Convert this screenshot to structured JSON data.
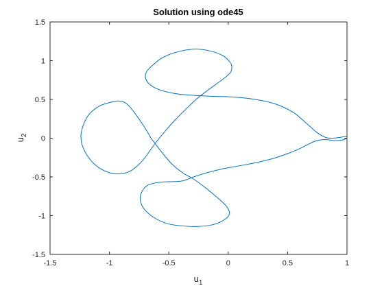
{
  "chart_data": {
    "type": "line",
    "title": "Solution using ode45",
    "xlabel": {
      "base": "u",
      "sub": "1"
    },
    "ylabel": {
      "base": "u",
      "sub": "2"
    },
    "xlim": [
      -1.5,
      1.0
    ],
    "ylim": [
      -1.5,
      1.5
    ],
    "xticks": [
      -1.5,
      -1,
      -0.5,
      0,
      0.5,
      1
    ],
    "xtick_labels": [
      "-1.5",
      "-1",
      "-0.5",
      "0",
      "0.5",
      "1"
    ],
    "yticks": [
      -1.5,
      -1,
      -0.5,
      0,
      0.5,
      1,
      1.5
    ],
    "ytick_labels": [
      "-1.5",
      "-1",
      "-0.5",
      "0",
      "0.5",
      "1",
      "1.5"
    ],
    "grid": false,
    "box": true,
    "line_color": "#0072bd",
    "series": [
      {
        "points": [
          [
            1.0,
            0.0
          ],
          [
            0.97,
            -0.02
          ],
          [
            0.93,
            -0.03
          ],
          [
            0.88,
            -0.03
          ],
          [
            0.84,
            -0.02
          ],
          [
            0.79,
            -0.02
          ],
          [
            0.73,
            -0.04
          ],
          [
            0.66,
            -0.09
          ],
          [
            0.58,
            -0.15
          ],
          [
            0.48,
            -0.21
          ],
          [
            0.36,
            -0.27
          ],
          [
            0.22,
            -0.32
          ],
          [
            0.08,
            -0.36
          ],
          [
            -0.06,
            -0.4
          ],
          [
            -0.19,
            -0.45
          ],
          [
            -0.29,
            -0.5
          ],
          [
            -0.38,
            -0.55
          ],
          [
            -0.45,
            -0.56
          ],
          [
            -0.58,
            -0.57
          ],
          [
            -0.68,
            -0.61
          ],
          [
            -0.73,
            -0.7
          ],
          [
            -0.74,
            -0.8
          ],
          [
            -0.71,
            -0.91
          ],
          [
            -0.63,
            -1.02
          ],
          [
            -0.52,
            -1.1
          ],
          [
            -0.4,
            -1.13
          ],
          [
            -0.27,
            -1.14
          ],
          [
            -0.14,
            -1.12
          ],
          [
            -0.04,
            -1.06
          ],
          [
            0.01,
            -0.98
          ],
          [
            -0.01,
            -0.89
          ],
          [
            -0.06,
            -0.81
          ],
          [
            -0.12,
            -0.73
          ],
          [
            -0.2,
            -0.63
          ],
          [
            -0.29,
            -0.53
          ],
          [
            -0.38,
            -0.45
          ],
          [
            -0.47,
            -0.34
          ],
          [
            -0.55,
            -0.2
          ],
          [
            -0.61,
            -0.08
          ],
          [
            -0.65,
            0.0
          ],
          [
            -0.68,
            0.08
          ],
          [
            -0.73,
            0.2
          ],
          [
            -0.8,
            0.35
          ],
          [
            -0.86,
            0.45
          ],
          [
            -0.92,
            0.48
          ],
          [
            -1.0,
            0.46
          ],
          [
            -1.09,
            0.41
          ],
          [
            -1.17,
            0.31
          ],
          [
            -1.22,
            0.17
          ],
          [
            -1.24,
            0.02
          ],
          [
            -1.22,
            -0.13
          ],
          [
            -1.16,
            -0.28
          ],
          [
            -1.08,
            -0.39
          ],
          [
            -0.99,
            -0.45
          ],
          [
            -0.91,
            -0.46
          ],
          [
            -0.83,
            -0.43
          ],
          [
            -0.76,
            -0.35
          ],
          [
            -0.7,
            -0.25
          ],
          [
            -0.64,
            -0.12
          ],
          [
            -0.58,
            0.0
          ],
          [
            -0.52,
            0.11
          ],
          [
            -0.45,
            0.23
          ],
          [
            -0.36,
            0.37
          ],
          [
            -0.27,
            0.5
          ],
          [
            -0.18,
            0.61
          ],
          [
            -0.09,
            0.71
          ],
          [
            -0.02,
            0.79
          ],
          [
            0.02,
            0.85
          ],
          [
            0.03,
            0.91
          ],
          [
            0.02,
            0.97
          ],
          [
            -0.04,
            1.06
          ],
          [
            -0.14,
            1.12
          ],
          [
            -0.27,
            1.15
          ],
          [
            -0.41,
            1.12
          ],
          [
            -0.54,
            1.05
          ],
          [
            -0.63,
            0.95
          ],
          [
            -0.69,
            0.85
          ],
          [
            -0.69,
            0.75
          ],
          [
            -0.64,
            0.67
          ],
          [
            -0.55,
            0.61
          ],
          [
            -0.42,
            0.57
          ],
          [
            -0.26,
            0.55
          ],
          [
            -0.12,
            0.54
          ],
          [
            0.05,
            0.53
          ],
          [
            0.23,
            0.5
          ],
          [
            0.4,
            0.44
          ],
          [
            0.55,
            0.33
          ],
          [
            0.66,
            0.19
          ],
          [
            0.75,
            0.07
          ],
          [
            0.82,
            0.01
          ],
          [
            0.88,
            0.0
          ],
          [
            0.94,
            0.01
          ],
          [
            0.98,
            0.02
          ],
          [
            1.0,
            0.02
          ]
        ]
      }
    ]
  }
}
